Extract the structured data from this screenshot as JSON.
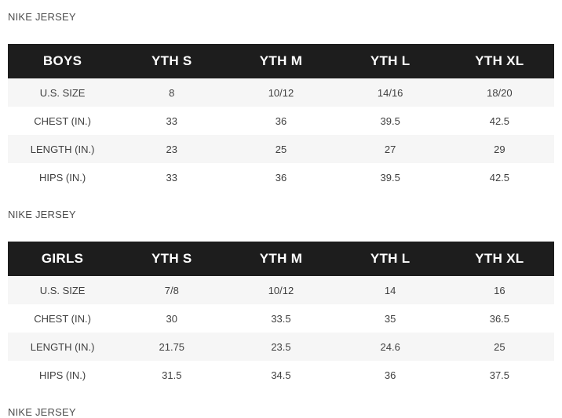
{
  "colors": {
    "header_bg": "#1d1d1d",
    "header_text": "#ffffff",
    "row_alt_bg": "#f6f6f6",
    "row_bg": "#ffffff",
    "body_text": "#404040",
    "label_text": "#4e4e4e"
  },
  "tables": [
    {
      "label": "NIKE JERSEY",
      "columns": [
        "BOYS",
        "YTH S",
        "YTH M",
        "YTH L",
        "YTH XL"
      ],
      "rows": [
        {
          "header": "U.S. SIZE",
          "values": [
            "8",
            "10/12",
            "14/16",
            "18/20"
          ]
        },
        {
          "header": "CHEST (IN.)",
          "values": [
            "33",
            "36",
            "39.5",
            "42.5"
          ]
        },
        {
          "header": "LENGTH (IN.)",
          "values": [
            "23",
            "25",
            "27",
            "29"
          ]
        },
        {
          "header": "HIPS (IN.)",
          "values": [
            "33",
            "36",
            "39.5",
            "42.5"
          ]
        }
      ]
    },
    {
      "label": "NIKE JERSEY",
      "columns": [
        "GIRLS",
        "YTH S",
        "YTH M",
        "YTH L",
        "YTH XL"
      ],
      "rows": [
        {
          "header": "U.S. SIZE",
          "values": [
            "7/8",
            "10/12",
            "14",
            "16"
          ]
        },
        {
          "header": "CHEST (IN.)",
          "values": [
            "30",
            "33.5",
            "35",
            "36.5"
          ]
        },
        {
          "header": "LENGTH (IN.)",
          "values": [
            "21.75",
            "23.5",
            "24.6",
            "25"
          ]
        },
        {
          "header": "HIPS (IN.)",
          "values": [
            "31.5",
            "34.5",
            "36",
            "37.5"
          ]
        }
      ]
    }
  ],
  "trailing_label": "NIKE JERSEY"
}
